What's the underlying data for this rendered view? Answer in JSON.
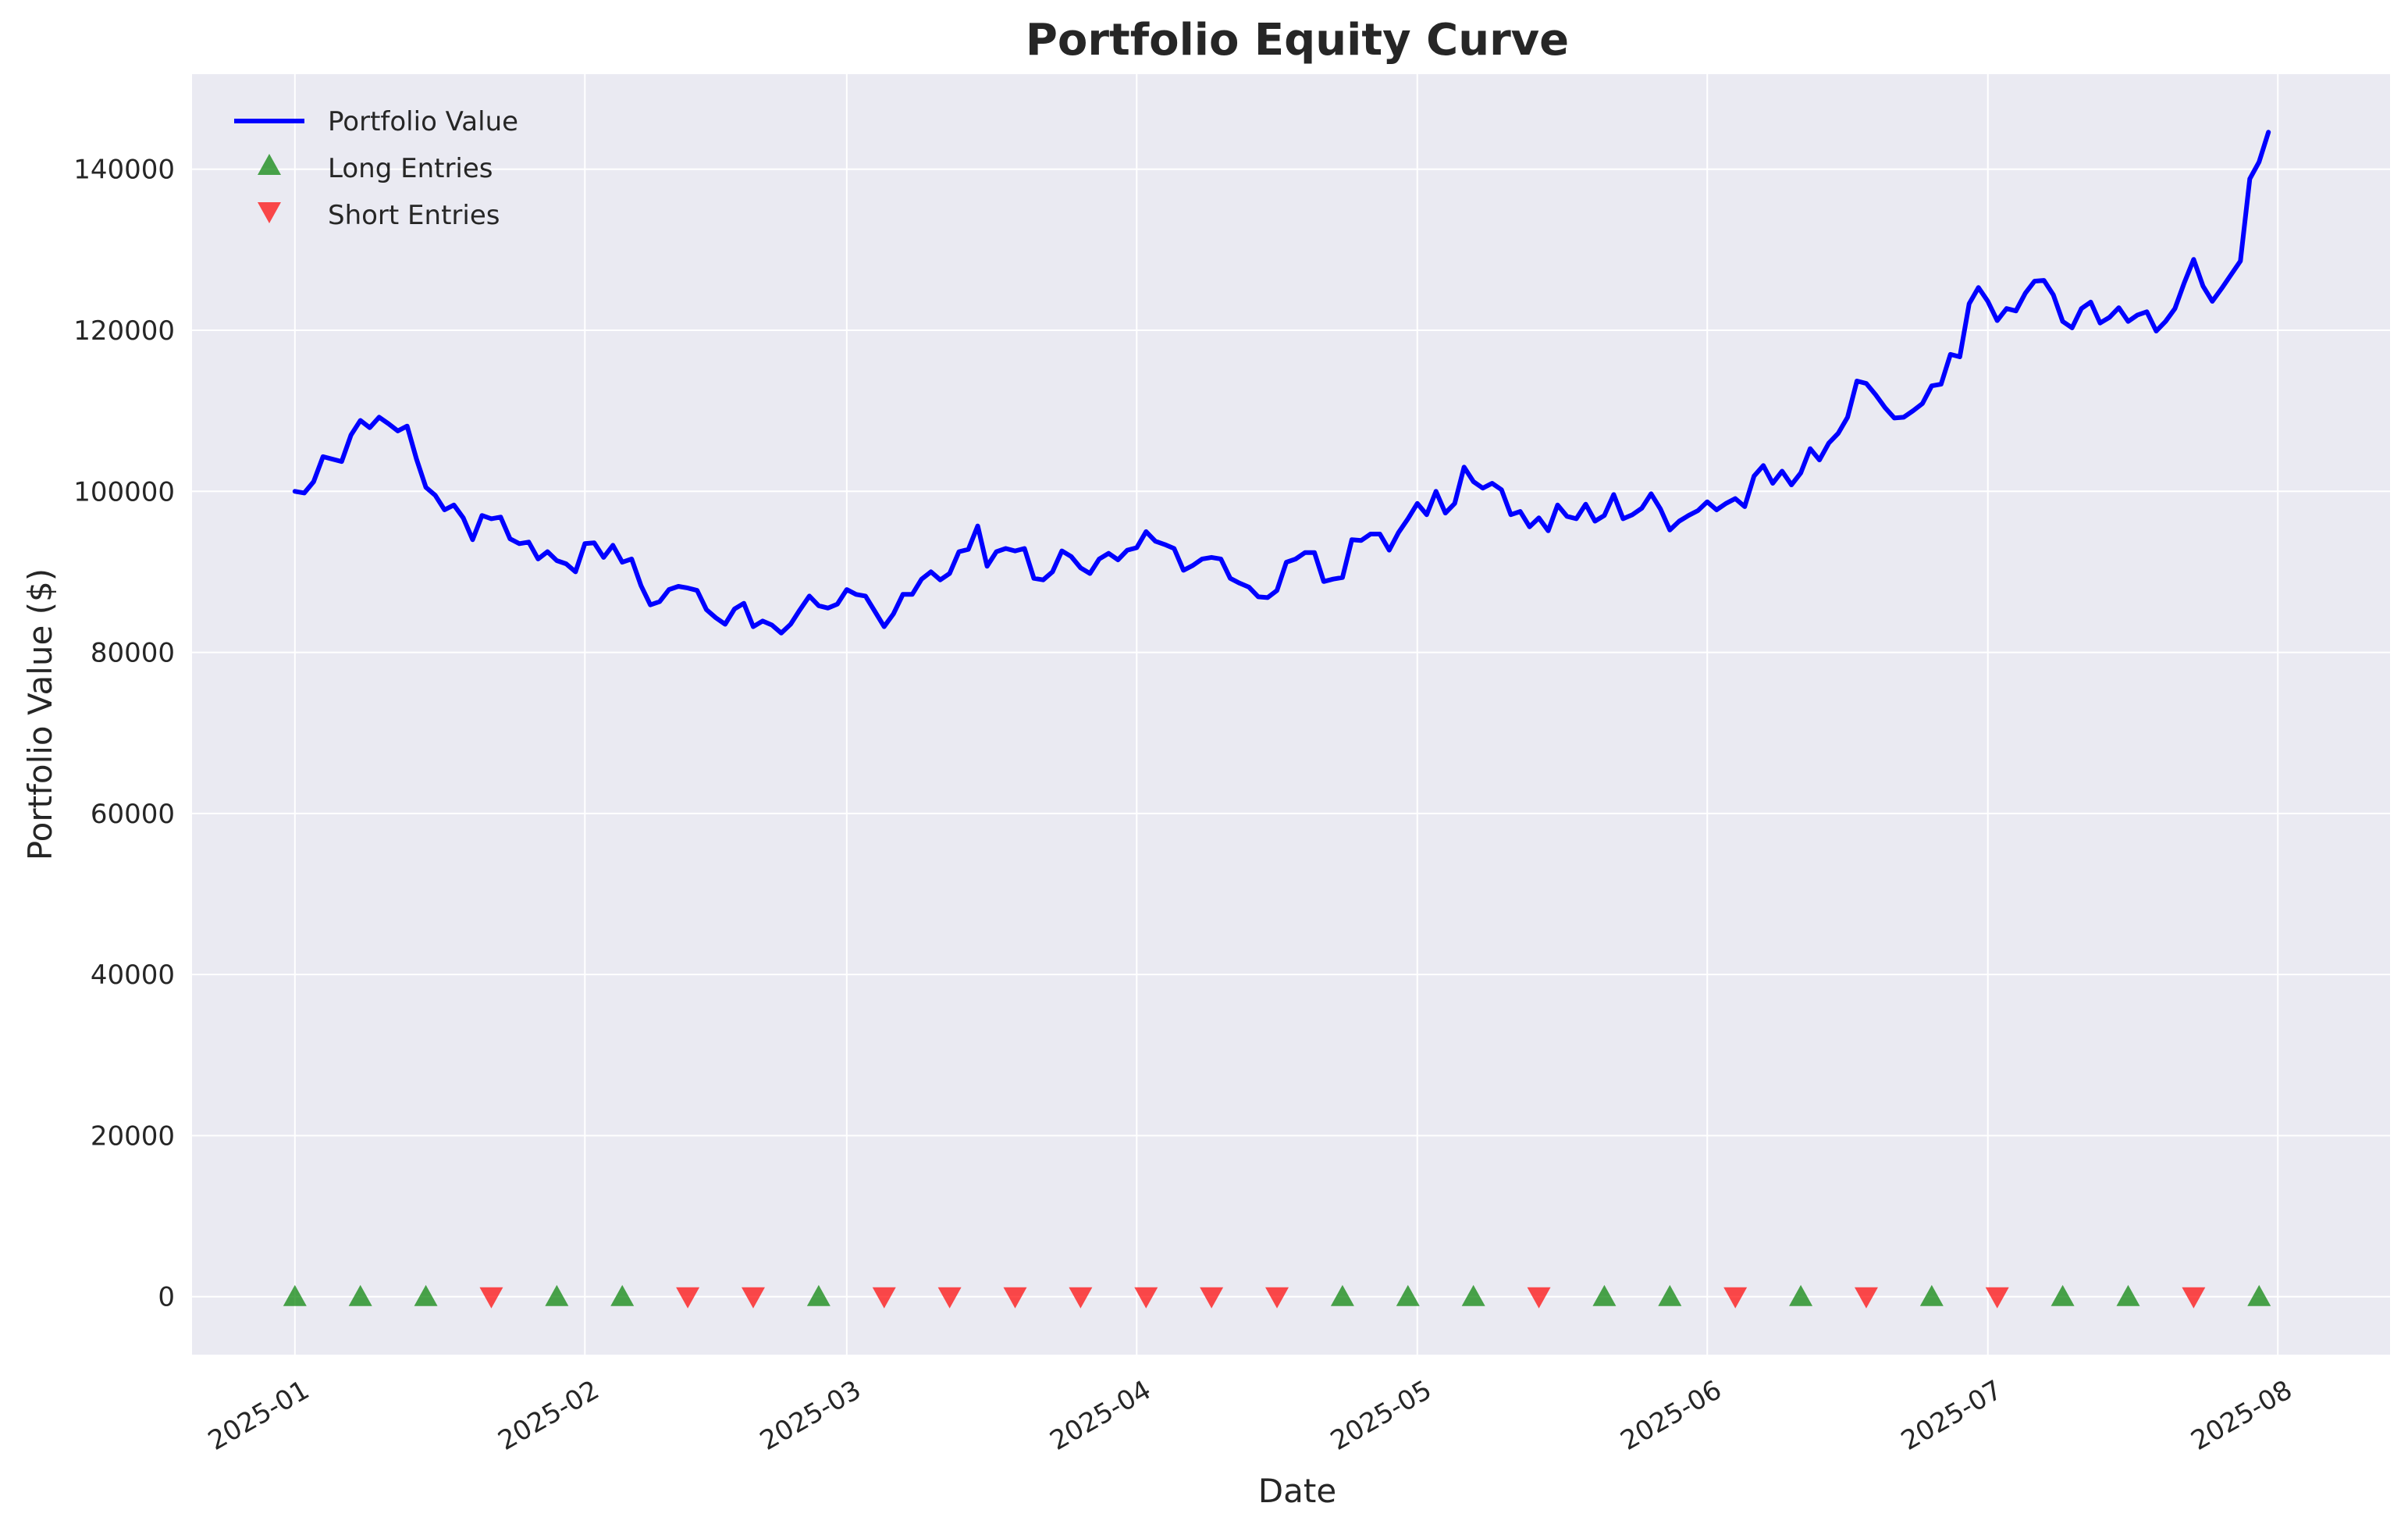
{
  "chart_data": {
    "type": "line",
    "title": "Portfolio Equity Curve",
    "xlabel": "Date",
    "ylabel": "Portfolio Value ($)",
    "x_axis_type": "date",
    "xlim": [
      "2024-12-21",
      "2025-08-13"
    ],
    "ylim": [
      -7200,
      151800
    ],
    "x_ticks": [
      "2025-01",
      "2025-02",
      "2025-03",
      "2025-04",
      "2025-05",
      "2025-06",
      "2025-07",
      "2025-08"
    ],
    "x_tick_dates": [
      "2025-01-01",
      "2025-02-01",
      "2025-03-01",
      "2025-04-01",
      "2025-05-01",
      "2025-06-01",
      "2025-07-01",
      "2025-08-01"
    ],
    "y_ticks": [
      0,
      20000,
      40000,
      60000,
      80000,
      100000,
      120000,
      140000
    ],
    "grid": true,
    "background_color": "#EAEAF2",
    "legend_position": "top-left",
    "series": [
      {
        "name": "Portfolio Value",
        "kind": "line",
        "color": "#0000FF",
        "x": [
          "2025-01-01",
          "2025-01-02",
          "2025-01-03",
          "2025-01-04",
          "2025-01-05",
          "2025-01-06",
          "2025-01-07",
          "2025-01-08",
          "2025-01-09",
          "2025-01-10",
          "2025-01-11",
          "2025-01-12",
          "2025-01-13",
          "2025-01-14",
          "2025-01-15",
          "2025-01-16",
          "2025-01-17",
          "2025-01-18",
          "2025-01-19",
          "2025-01-20",
          "2025-01-21",
          "2025-01-22",
          "2025-01-23",
          "2025-01-24",
          "2025-01-25",
          "2025-01-26",
          "2025-01-27",
          "2025-01-28",
          "2025-01-29",
          "2025-01-30",
          "2025-01-31",
          "2025-02-01",
          "2025-02-02",
          "2025-02-03",
          "2025-02-04",
          "2025-02-05",
          "2025-02-06",
          "2025-02-07",
          "2025-02-08",
          "2025-02-09",
          "2025-02-10",
          "2025-02-11",
          "2025-02-12",
          "2025-02-13",
          "2025-02-14",
          "2025-02-15",
          "2025-02-16",
          "2025-02-17",
          "2025-02-18",
          "2025-02-19",
          "2025-02-20",
          "2025-02-21",
          "2025-02-22",
          "2025-02-23",
          "2025-02-24",
          "2025-02-25",
          "2025-02-26",
          "2025-02-27",
          "2025-02-28",
          "2025-03-01",
          "2025-03-02",
          "2025-03-03",
          "2025-03-04",
          "2025-03-05",
          "2025-03-06",
          "2025-03-07",
          "2025-03-08",
          "2025-03-09",
          "2025-03-10",
          "2025-03-11",
          "2025-03-12",
          "2025-03-13",
          "2025-03-14",
          "2025-03-15",
          "2025-03-16",
          "2025-03-17",
          "2025-03-18",
          "2025-03-19",
          "2025-03-20",
          "2025-03-21",
          "2025-03-22",
          "2025-03-23",
          "2025-03-24",
          "2025-03-25",
          "2025-03-26",
          "2025-03-27",
          "2025-03-28",
          "2025-03-29",
          "2025-03-30",
          "2025-03-31",
          "2025-04-01",
          "2025-04-02",
          "2025-04-03",
          "2025-04-04",
          "2025-04-05",
          "2025-04-06",
          "2025-04-07",
          "2025-04-08",
          "2025-04-09",
          "2025-04-10",
          "2025-04-11",
          "2025-04-12",
          "2025-04-13",
          "2025-04-14",
          "2025-04-15",
          "2025-04-16",
          "2025-04-17",
          "2025-04-18",
          "2025-04-19",
          "2025-04-20",
          "2025-04-21",
          "2025-04-22",
          "2025-04-23",
          "2025-04-24",
          "2025-04-25",
          "2025-04-26",
          "2025-04-27",
          "2025-04-28",
          "2025-04-29",
          "2025-04-30",
          "2025-05-01",
          "2025-05-02",
          "2025-05-03",
          "2025-05-04",
          "2025-05-05",
          "2025-05-06",
          "2025-05-07",
          "2025-05-08",
          "2025-05-09",
          "2025-05-10",
          "2025-05-11",
          "2025-05-12",
          "2025-05-13",
          "2025-05-14",
          "2025-05-15",
          "2025-05-16",
          "2025-05-17",
          "2025-05-18",
          "2025-05-19",
          "2025-05-20",
          "2025-05-21",
          "2025-05-22",
          "2025-05-23",
          "2025-05-24",
          "2025-05-25",
          "2025-05-26",
          "2025-05-27",
          "2025-05-28",
          "2025-05-29",
          "2025-05-30",
          "2025-05-31",
          "2025-06-01",
          "2025-06-02",
          "2025-06-03",
          "2025-06-04",
          "2025-06-05",
          "2025-06-06",
          "2025-06-07",
          "2025-06-08",
          "2025-06-09",
          "2025-06-10",
          "2025-06-11",
          "2025-06-12",
          "2025-06-13",
          "2025-06-14",
          "2025-06-15",
          "2025-06-16",
          "2025-06-17",
          "2025-06-18",
          "2025-06-19",
          "2025-06-20",
          "2025-06-21",
          "2025-06-22",
          "2025-06-23",
          "2025-06-24",
          "2025-06-25",
          "2025-06-26",
          "2025-06-27",
          "2025-06-28",
          "2025-06-29",
          "2025-06-30",
          "2025-07-01",
          "2025-07-02",
          "2025-07-03",
          "2025-07-04",
          "2025-07-05",
          "2025-07-06",
          "2025-07-07",
          "2025-07-08",
          "2025-07-09",
          "2025-07-10",
          "2025-07-11",
          "2025-07-12",
          "2025-07-13",
          "2025-07-14",
          "2025-07-15",
          "2025-07-16",
          "2025-07-17",
          "2025-07-18",
          "2025-07-19",
          "2025-07-20",
          "2025-07-21",
          "2025-07-22",
          "2025-07-23",
          "2025-07-24",
          "2025-07-25",
          "2025-07-26",
          "2025-07-27",
          "2025-07-28",
          "2025-07-29",
          "2025-07-30",
          "2025-07-31"
        ],
        "values": [
          100000,
          99800,
          101200,
          104300,
          104000,
          103700,
          107000,
          108800,
          107900,
          109200,
          108400,
          107500,
          108100,
          104000,
          100500,
          99500,
          97700,
          98300,
          96700,
          94000,
          97000,
          96600,
          96800,
          94100,
          93500,
          93700,
          91600,
          92500,
          91400,
          91000,
          90000,
          93500,
          93600,
          91800,
          93300,
          91200,
          91600,
          88300,
          85900,
          86300,
          87800,
          88200,
          88000,
          87700,
          85300,
          84300,
          83500,
          85400,
          86100,
          83200,
          83900,
          83400,
          82400,
          83500,
          85300,
          87000,
          85800,
          85500,
          86000,
          87800,
          87200,
          87000,
          85100,
          83200,
          84800,
          87200,
          87200,
          89100,
          90000,
          89000,
          89800,
          92500,
          92800,
          95700,
          90700,
          92500,
          92900,
          92600,
          92900,
          89200,
          89000,
          90000,
          92600,
          91900,
          90500,
          89800,
          91600,
          92300,
          91500,
          92700,
          93000,
          95000,
          93800,
          93400,
          92900,
          90200,
          90800,
          91600,
          91800,
          91600,
          89200,
          88600,
          88100,
          86900,
          86800,
          87700,
          91200,
          91600,
          92400,
          92400,
          88800,
          89100,
          89300,
          94000,
          93900,
          94700,
          94700,
          92700,
          94900,
          96600,
          98500,
          97100,
          100000,
          97300,
          98500,
          103000,
          101200,
          100400,
          101000,
          100200,
          97100,
          97500,
          95600,
          96700,
          95100,
          98300,
          96900,
          96600,
          98400,
          96300,
          97000,
          99600,
          96600,
          97100,
          97900,
          99700,
          97800,
          95200,
          96300,
          97000,
          97600,
          98700,
          97700,
          98500,
          99100,
          98100,
          101900,
          103200,
          101000,
          102500,
          100800,
          102300,
          105300,
          103900,
          106000,
          107200,
          109200,
          113700,
          113400,
          112000,
          110400,
          109100,
          109200,
          110000,
          110900,
          113100,
          113300,
          117000,
          116700,
          123300,
          125300,
          123600,
          121200,
          122700,
          122400,
          124600,
          126100,
          126200,
          124400,
          121100,
          120300,
          122700,
          123500,
          120900,
          121600,
          122800,
          121100,
          121900,
          122300,
          119900,
          121100,
          122700,
          125900,
          128800,
          125500,
          123600,
          125200,
          126900,
          128600,
          138800,
          140900,
          144600
        ]
      },
      {
        "name": "Long Entries",
        "kind": "scatter",
        "marker": "triangle-up",
        "color": "#008000",
        "x": [
          "2025-01-01",
          "2025-01-08",
          "2025-01-15",
          "2025-01-29",
          "2025-02-05",
          "2025-02-26",
          "2025-04-23",
          "2025-04-30",
          "2025-05-07",
          "2025-05-21",
          "2025-05-28",
          "2025-06-11",
          "2025-06-25",
          "2025-07-09",
          "2025-07-16",
          "2025-07-30"
        ],
        "values": [
          0,
          0,
          0,
          0,
          0,
          0,
          0,
          0,
          0,
          0,
          0,
          0,
          0,
          0,
          0,
          0
        ]
      },
      {
        "name": "Short Entries",
        "kind": "scatter",
        "marker": "triangle-down",
        "color": "#FF0000",
        "x": [
          "2025-01-22",
          "2025-02-12",
          "2025-02-19",
          "2025-03-05",
          "2025-03-12",
          "2025-03-19",
          "2025-03-26",
          "2025-04-02",
          "2025-04-09",
          "2025-04-16",
          "2025-05-14",
          "2025-06-04",
          "2025-06-18",
          "2025-07-02",
          "2025-07-23"
        ],
        "values": [
          0,
          0,
          0,
          0,
          0,
          0,
          0,
          0,
          0,
          0,
          0,
          0,
          0,
          0,
          0
        ]
      }
    ]
  }
}
